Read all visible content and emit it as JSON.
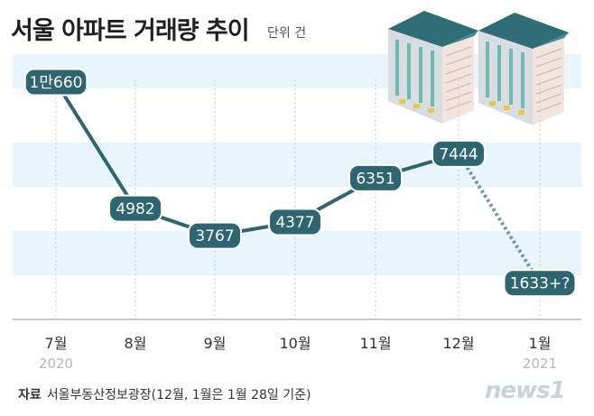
{
  "header": {
    "title": "서울 아파트 거래량 추이",
    "unit": "단위 건"
  },
  "source": {
    "label": "자료",
    "text": "서울부동산정보광장(12월, 1월은 1월 28일 기준)"
  },
  "logo": {
    "text": "news1"
  },
  "chart_data": {
    "type": "line",
    "categories": [
      "7월",
      "8월",
      "9월",
      "10월",
      "11월",
      "12월",
      "1월"
    ],
    "year_labels": [
      "2020",
      "",
      "",
      "",
      "",
      "",
      "2021"
    ],
    "values": [
      10660,
      4982,
      3767,
      4377,
      6351,
      7444,
      1633
    ],
    "value_labels": [
      "1만660",
      "4982",
      "3767",
      "4377",
      "6351",
      "7444",
      "1633+?"
    ],
    "projected_last": true,
    "ylim": [
      0,
      12000
    ],
    "colors": {
      "line": "#2e6570",
      "projection": "#6e99a3",
      "band": "#e8f5fb",
      "badge_border": "#ffffff"
    },
    "xlabel": "",
    "ylabel": ""
  }
}
